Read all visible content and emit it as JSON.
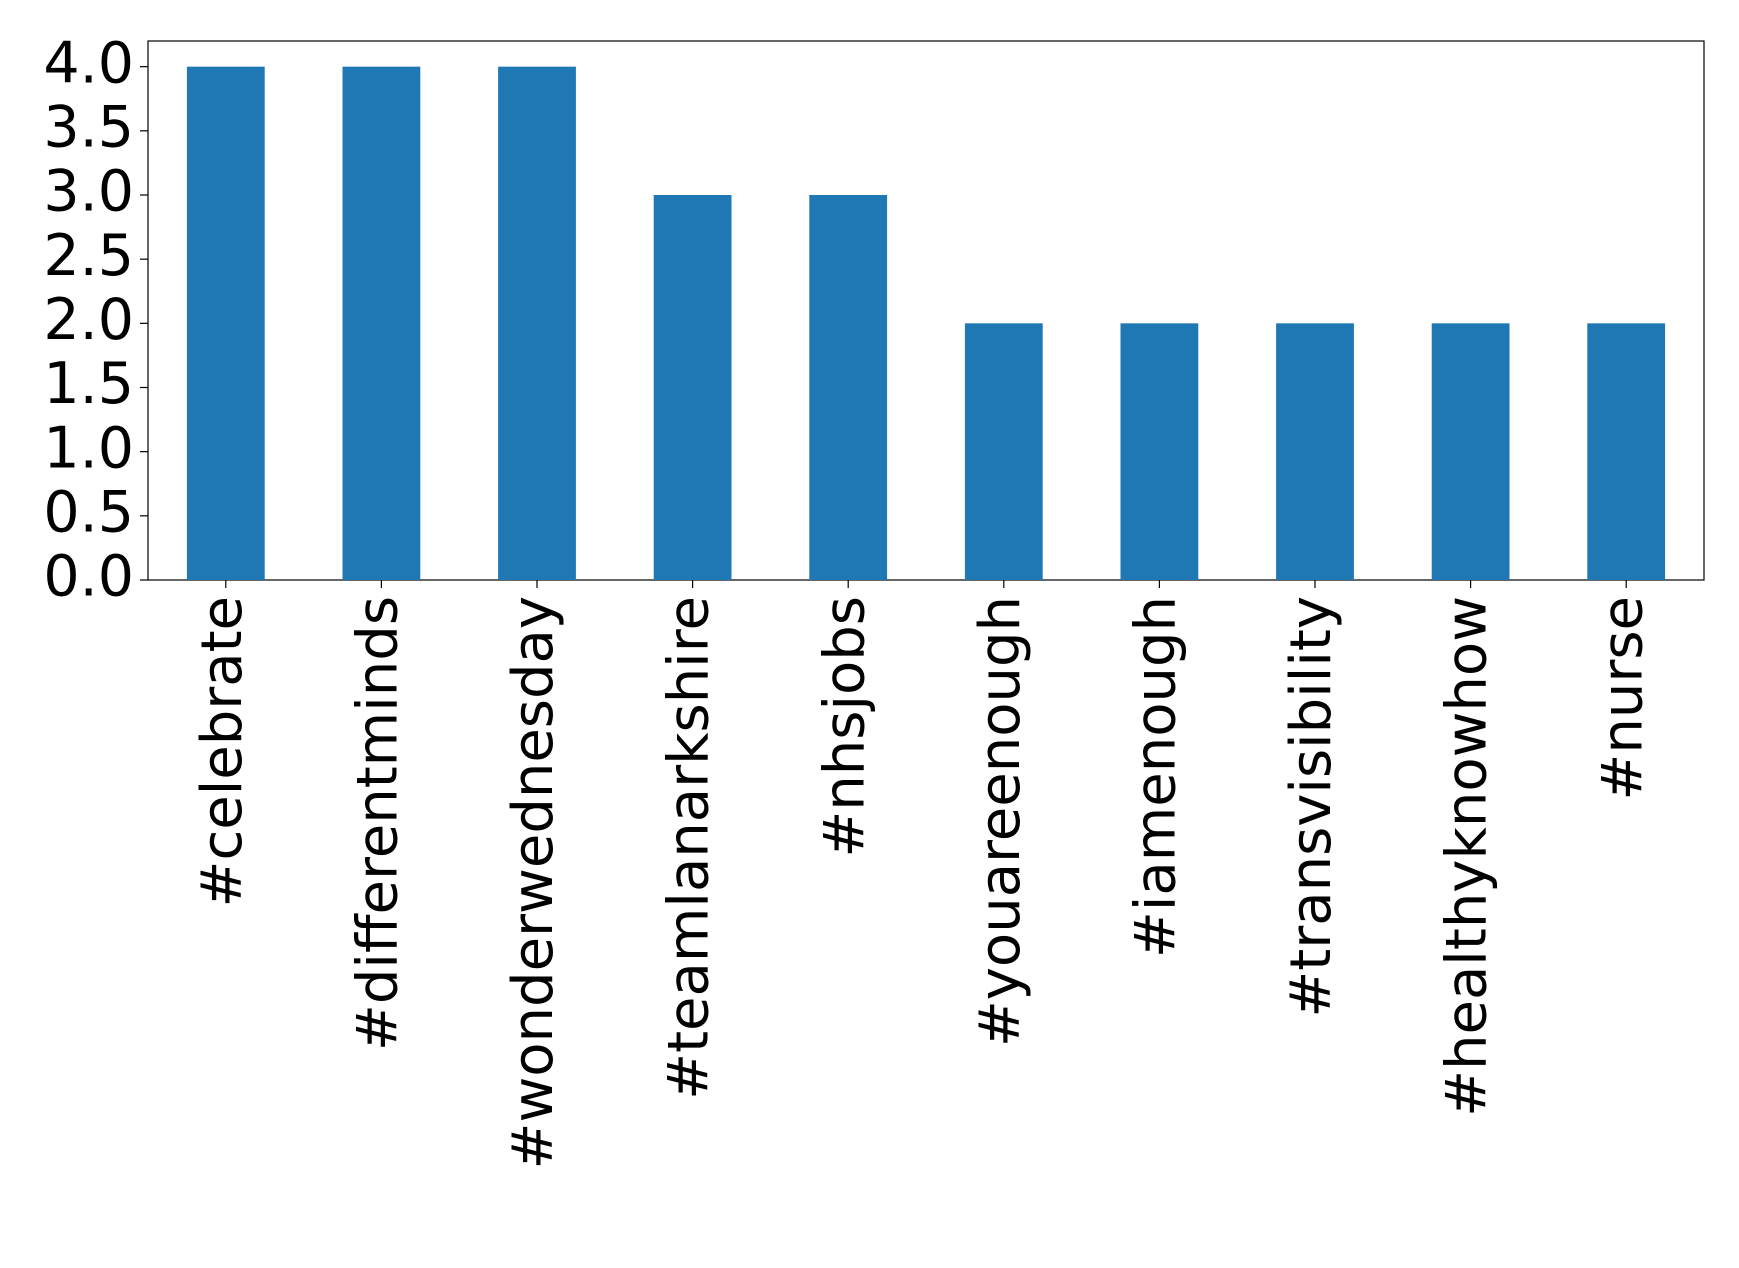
{
  "chart_data": {
    "type": "bar",
    "categories": [
      "#celebrate",
      "#differentminds",
      "#wonderwednesday",
      "#teamlanarkshire",
      "#nhsjobs",
      "#youareenough",
      "#iamenough",
      "#transvisibility",
      "#healthyknowhow",
      "#nurse"
    ],
    "values": [
      4,
      4,
      4,
      3,
      3,
      2,
      2,
      2,
      2,
      2
    ],
    "color": "#1f77b4",
    "ylim": [
      0,
      4.2
    ],
    "yticks": [
      {
        "value": 0,
        "label": "0.0"
      },
      0.5,
      {
        "value": 1,
        "label": "1.0"
      },
      1.5,
      {
        "value": 2,
        "label": "2.0"
      },
      2.5,
      {
        "value": 3,
        "label": "3.0"
      },
      3.5,
      {
        "value": 4,
        "label": "4.0"
      }
    ],
    "grid": false
  }
}
